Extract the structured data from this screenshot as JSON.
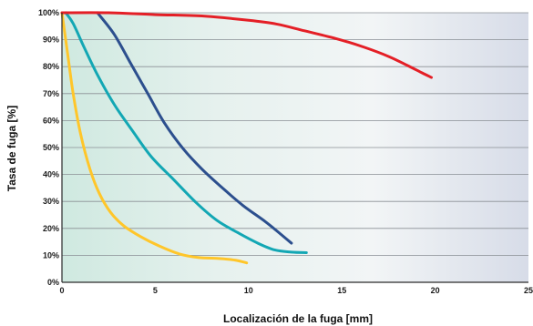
{
  "chart_data": {
    "type": "line",
    "xlabel": "Localización de la fuga [mm]",
    "ylabel": "Tasa de fuga [%]",
    "xlim": [
      0,
      25
    ],
    "ylim": [
      0,
      100
    ],
    "x_ticks": [
      {
        "value": 0,
        "label": "0"
      },
      {
        "value": 5,
        "label": "5"
      },
      {
        "value": 10,
        "label": "10"
      },
      {
        "value": 15,
        "label": "15"
      },
      {
        "value": 20,
        "label": "20"
      },
      {
        "value": 25,
        "label": "25"
      }
    ],
    "y_ticks": [
      {
        "value": 0,
        "label": "0%"
      },
      {
        "value": 10,
        "label": "10%"
      },
      {
        "value": 20,
        "label": "20%"
      },
      {
        "value": 30,
        "label": "30%"
      },
      {
        "value": 40,
        "label": "40%"
      },
      {
        "value": 50,
        "label": "50%"
      },
      {
        "value": 60,
        "label": "60%"
      },
      {
        "value": 70,
        "label": "70%"
      },
      {
        "value": 80,
        "label": "80%"
      },
      {
        "value": 90,
        "label": "90%"
      },
      {
        "value": 100,
        "label": "100%"
      }
    ],
    "grid": true,
    "legend": false,
    "background_gradient": [
      "#cfe9e0",
      "#e6f1ee",
      "#f2f5f6",
      "#d7dce8"
    ],
    "series": [
      {
        "color": "#ffc62a",
        "points": [
          [
            0,
            100
          ],
          [
            0.3,
            85
          ],
          [
            0.6,
            70
          ],
          [
            1.0,
            55
          ],
          [
            1.5,
            42
          ],
          [
            2.0,
            33
          ],
          [
            2.6,
            26
          ],
          [
            3.3,
            21
          ],
          [
            4.2,
            17
          ],
          [
            5.2,
            13.5
          ],
          [
            6.3,
            10.5
          ],
          [
            7.3,
            9.2
          ],
          [
            8.5,
            8.8
          ],
          [
            9.3,
            8.2
          ],
          [
            9.9,
            7.2
          ]
        ]
      },
      {
        "color": "#13a7b4",
        "points": [
          [
            0.2,
            100
          ],
          [
            0.6,
            96
          ],
          [
            1.2,
            87
          ],
          [
            1.9,
            77
          ],
          [
            2.8,
            66
          ],
          [
            3.8,
            56
          ],
          [
            4.8,
            46.5
          ],
          [
            6.0,
            38
          ],
          [
            7.2,
            29.5
          ],
          [
            8.3,
            23
          ],
          [
            9.4,
            18.5
          ],
          [
            10.5,
            14.5
          ],
          [
            11.4,
            12
          ],
          [
            12.3,
            11.2
          ],
          [
            13.1,
            11
          ]
        ]
      },
      {
        "color": "#2c4f8e",
        "points": [
          [
            1.9,
            100
          ],
          [
            2.8,
            92
          ],
          [
            3.7,
            81
          ],
          [
            4.6,
            70
          ],
          [
            5.5,
            59
          ],
          [
            6.5,
            49.5
          ],
          [
            7.5,
            42
          ],
          [
            8.6,
            35
          ],
          [
            9.7,
            28.5
          ],
          [
            10.9,
            22.5
          ],
          [
            11.7,
            18
          ],
          [
            12.3,
            14.5
          ]
        ]
      },
      {
        "color": "#e41f26",
        "points": [
          [
            0,
            100
          ],
          [
            2.5,
            100
          ],
          [
            5.0,
            99.3
          ],
          [
            7.5,
            98.8
          ],
          [
            10.0,
            97.2
          ],
          [
            11.5,
            95.8
          ],
          [
            13.0,
            93.3
          ],
          [
            14.8,
            90.2
          ],
          [
            16.2,
            87.2
          ],
          [
            17.5,
            83.8
          ],
          [
            18.5,
            80.5
          ],
          [
            19.3,
            77.7
          ],
          [
            19.8,
            76
          ]
        ]
      }
    ]
  }
}
